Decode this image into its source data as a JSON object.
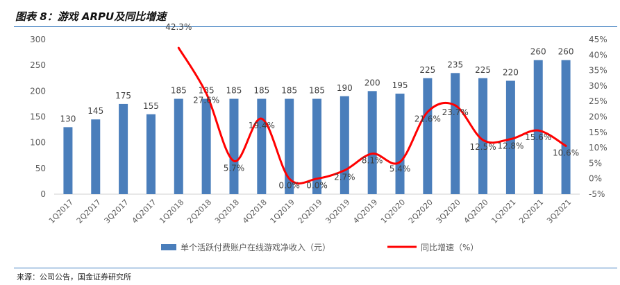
{
  "header": {
    "title": "图表 8：游戏 ARPU及同比增速"
  },
  "footer": {
    "source": "来源：公司公告，国金证券研究所"
  },
  "chart_data": {
    "type": "bar+line",
    "categories": [
      "1Q2017",
      "2Q2017",
      "3Q2017",
      "4Q2017",
      "1Q2018",
      "2Q2018",
      "3Q2018",
      "4Q2018",
      "1Q2019",
      "2Q2019",
      "3Q2019",
      "4Q2019",
      "1Q2020",
      "2Q2020",
      "3Q2020",
      "4Q2020",
      "1Q2021",
      "2Q2021",
      "3Q2021"
    ],
    "series": [
      {
        "name": "单个活跃付费账户在线游戏净收入（元）",
        "type": "bar",
        "axis": "left",
        "color": "#4a7ebb",
        "values": [
          130,
          145,
          175,
          155,
          185,
          185,
          185,
          185,
          185,
          185,
          190,
          200,
          195,
          225,
          235,
          225,
          220,
          260,
          260
        ],
        "labels": [
          "130",
          "145",
          "175",
          "155",
          "185",
          "185",
          "185",
          "185",
          "185",
          "185",
          "190",
          "200",
          "195",
          "225",
          "235",
          "225",
          "220",
          "260",
          "260"
        ]
      },
      {
        "name": "同比增速（%）",
        "type": "line",
        "axis": "right",
        "color": "#ff0000",
        "values": [
          null,
          null,
          null,
          null,
          42.3,
          27.6,
          5.7,
          19.4,
          0.0,
          0.0,
          2.7,
          8.1,
          5.4,
          21.6,
          23.7,
          12.5,
          12.8,
          15.6,
          10.6
        ],
        "labels": [
          "",
          "",
          "",
          "",
          "42.3%",
          "27.6%",
          "5.7%",
          "19.4%",
          "0.0%",
          "0.0%",
          "2.7%",
          "8.1%",
          "5.4%",
          "21.6%",
          "23.7%",
          "12.5%",
          "12.8%",
          "15.6%",
          "10.6%"
        ]
      }
    ],
    "y_left": {
      "ticks": [
        "0",
        "50",
        "100",
        "150",
        "200",
        "250",
        "300"
      ],
      "range": [
        0,
        300
      ]
    },
    "y_right": {
      "ticks": [
        "-5%",
        "0%",
        "5%",
        "10%",
        "15%",
        "20%",
        "25%",
        "30%",
        "35%",
        "40%",
        "45%"
      ],
      "range": [
        -5,
        45
      ]
    },
    "grid": false,
    "legend": {
      "placement": "bottom"
    }
  }
}
